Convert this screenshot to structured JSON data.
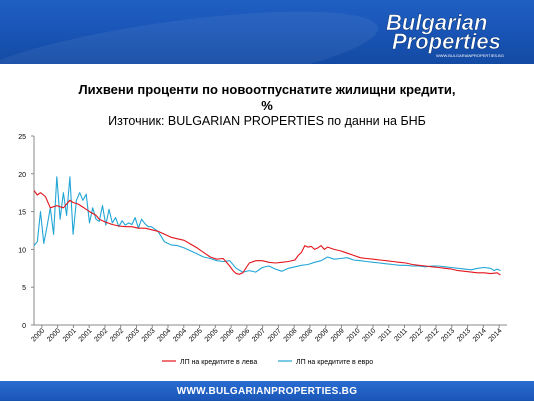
{
  "header": {
    "logo_line1": "Bulgarian",
    "logo_line2": "Properties",
    "logo_url": "WWW.BULGARIANPROPERTIES.BG"
  },
  "footer": {
    "url": "WWW.BULGARIANPROPERTIES.BG"
  },
  "colors": {
    "brand_blue": "#1a56b8",
    "series_bgn": "#e3141b",
    "series_eur": "#22a6d6"
  },
  "chart_data": {
    "type": "line",
    "title_line1": "Лихвени проценти по новоотпуснатите жилищни кредити,",
    "title_line2": "%",
    "subtitle": "Източник: BULGARIAN PROPERTIES по данни на БНБ",
    "xlabel": "",
    "ylabel": "",
    "xlim": [
      2000,
      2014.5
    ],
    "ylim": [
      0,
      25
    ],
    "yticks": [
      "0",
      "5",
      "10",
      "15",
      "20",
      "25"
    ],
    "xticks": [
      "2000",
      "2000",
      "2001",
      "2001",
      "2002",
      "2002",
      "2003",
      "2003",
      "2004",
      "2004",
      "2005",
      "2005",
      "2006",
      "2006",
      "2007",
      "2007",
      "2008",
      "2008",
      "2009",
      "2009",
      "2010",
      "2010",
      "2011",
      "2011",
      "2012",
      "2012",
      "2013",
      "2013",
      "2014",
      "2014"
    ],
    "grid": false,
    "legend": "bottom",
    "series": [
      {
        "name": "ЛП на кредитите в лева",
        "x": [
          2000.0,
          2000.1,
          2000.2,
          2000.35,
          2000.5,
          2000.7,
          2000.9,
          2001.0,
          2001.1,
          2001.2,
          2001.35,
          2001.5,
          2001.7,
          2001.9,
          2002.0,
          2002.2,
          2002.4,
          2002.6,
          2002.8,
          2003.0,
          2003.2,
          2003.4,
          2003.6,
          2003.8,
          2004.0,
          2004.2,
          2004.4,
          2004.6,
          2004.8,
          2005.0,
          2005.2,
          2005.4,
          2005.6,
          2005.8,
          2006.0,
          2006.1,
          2006.2,
          2006.3,
          2006.4,
          2006.6,
          2006.8,
          2007.0,
          2007.2,
          2007.4,
          2007.6,
          2007.8,
          2008.0,
          2008.1,
          2008.2,
          2008.3,
          2008.4,
          2008.5,
          2008.6,
          2008.7,
          2008.8,
          2008.9,
          2009.0,
          2009.2,
          2009.4,
          2009.6,
          2009.8,
          2010.0,
          2010.2,
          2010.4,
          2010.6,
          2010.8,
          2011.0,
          2011.2,
          2011.4,
          2011.6,
          2011.8,
          2012.0,
          2012.2,
          2012.4,
          2012.6,
          2012.8,
          2013.0,
          2013.2,
          2013.4,
          2013.6,
          2013.8,
          2014.0,
          2014.2,
          2014.3
        ],
        "y": [
          17.8,
          17.2,
          17.5,
          17.0,
          15.5,
          15.8,
          15.5,
          16.0,
          16.5,
          16.2,
          16.0,
          15.6,
          15.0,
          14.5,
          14.0,
          13.6,
          13.3,
          13.1,
          13.0,
          13.0,
          12.8,
          12.8,
          12.6,
          12.4,
          12.0,
          11.6,
          11.4,
          11.2,
          10.7,
          10.2,
          9.6,
          9.0,
          8.7,
          8.8,
          7.8,
          7.2,
          6.8,
          6.7,
          6.9,
          8.2,
          8.5,
          8.5,
          8.3,
          8.2,
          8.3,
          8.4,
          8.6,
          9.2,
          9.6,
          10.5,
          10.3,
          10.4,
          10.0,
          10.2,
          10.5,
          10.0,
          10.3,
          10.0,
          9.8,
          9.5,
          9.2,
          8.9,
          8.8,
          8.7,
          8.6,
          8.5,
          8.4,
          8.3,
          8.2,
          8.0,
          7.9,
          7.8,
          7.7,
          7.6,
          7.5,
          7.4,
          7.2,
          7.1,
          7.0,
          6.9,
          6.9,
          6.8,
          6.9,
          6.6
        ]
      },
      {
        "name": "ЛП на кредитите в евро",
        "x": [
          2000.0,
          2000.1,
          2000.2,
          2000.3,
          2000.4,
          2000.5,
          2000.6,
          2000.7,
          2000.8,
          2000.9,
          2001.0,
          2001.1,
          2001.2,
          2001.3,
          2001.4,
          2001.5,
          2001.6,
          2001.7,
          2001.8,
          2001.9,
          2002.0,
          2002.1,
          2002.2,
          2002.3,
          2002.4,
          2002.5,
          2002.6,
          2002.7,
          2002.8,
          2002.9,
          2003.0,
          2003.1,
          2003.2,
          2003.3,
          2003.4,
          2003.5,
          2003.6,
          2003.8,
          2004.0,
          2004.2,
          2004.4,
          2004.6,
          2004.8,
          2005.0,
          2005.2,
          2005.4,
          2005.6,
          2005.8,
          2006.0,
          2006.2,
          2006.4,
          2006.6,
          2006.8,
          2007.0,
          2007.2,
          2007.4,
          2007.6,
          2007.8,
          2008.0,
          2008.2,
          2008.4,
          2008.6,
          2008.8,
          2009.0,
          2009.2,
          2009.4,
          2009.6,
          2009.8,
          2010.0,
          2010.2,
          2010.4,
          2010.6,
          2010.8,
          2011.0,
          2011.2,
          2011.4,
          2011.6,
          2011.8,
          2012.0,
          2012.2,
          2012.4,
          2012.6,
          2012.8,
          2013.0,
          2013.2,
          2013.4,
          2013.6,
          2013.8,
          2014.0,
          2014.1,
          2014.2,
          2014.3
        ],
        "y": [
          10.5,
          11.0,
          15.0,
          10.8,
          13.0,
          15.5,
          12.0,
          19.6,
          14.0,
          17.5,
          14.5,
          19.6,
          12.0,
          16.5,
          17.5,
          16.5,
          17.3,
          13.5,
          15.5,
          14.0,
          13.7,
          15.8,
          13.2,
          15.3,
          13.5,
          14.2,
          13.0,
          13.8,
          13.2,
          13.5,
          13.3,
          14.2,
          12.8,
          14.0,
          13.4,
          13.0,
          13.0,
          12.4,
          11.0,
          10.6,
          10.5,
          10.2,
          9.8,
          9.4,
          9.0,
          8.8,
          8.5,
          8.4,
          8.5,
          7.5,
          7.0,
          7.2,
          7.0,
          7.6,
          7.8,
          7.4,
          7.1,
          7.5,
          7.7,
          7.9,
          8.0,
          8.3,
          8.5,
          9.0,
          8.7,
          8.8,
          8.9,
          8.6,
          8.5,
          8.4,
          8.3,
          8.2,
          8.1,
          8.0,
          7.9,
          7.9,
          7.8,
          7.8,
          7.7,
          7.8,
          7.8,
          7.7,
          7.6,
          7.5,
          7.4,
          7.3,
          7.5,
          7.6,
          7.5,
          7.2,
          7.4,
          7.2
        ]
      }
    ]
  }
}
